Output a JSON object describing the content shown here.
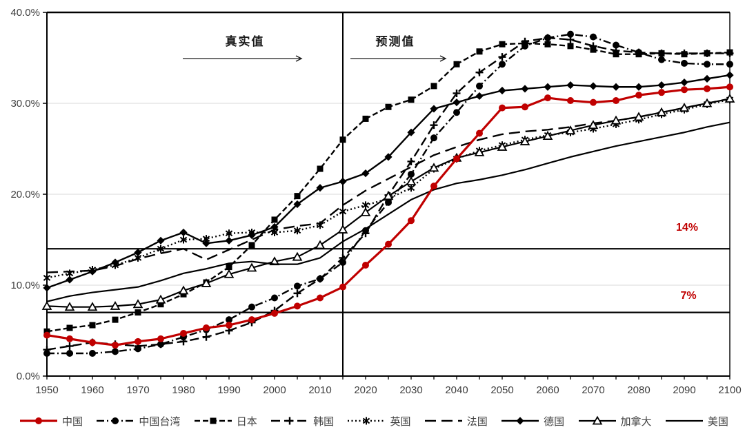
{
  "chart_data": {
    "type": "line",
    "title": "",
    "xlabel": "",
    "ylabel": "",
    "xlim": [
      1950,
      2100
    ],
    "ylim": [
      0,
      40
    ],
    "grid": "horizontal",
    "gridline_values": [
      10,
      20,
      30
    ],
    "y_ticks": [
      {
        "value": 0,
        "label": "0.0%"
      },
      {
        "value": 10,
        "label": "10.0%"
      },
      {
        "value": 20,
        "label": "20.0%"
      },
      {
        "value": 30,
        "label": "30.0%"
      },
      {
        "value": 40,
        "label": "40.0%"
      }
    ],
    "x_ticks": [
      1950,
      1960,
      1970,
      1980,
      1990,
      2000,
      2010,
      2020,
      2030,
      2040,
      2050,
      2060,
      2070,
      2080,
      2090,
      2100
    ],
    "divider_year": 2015,
    "annotations": {
      "actual_label": "真实值",
      "forecast_label": "预测值"
    },
    "reference_lines": [
      {
        "y": 14,
        "label": "14%",
        "color": "#000000",
        "label_color": "#c00000"
      },
      {
        "y": 7,
        "label": "7%",
        "color": "#000000",
        "label_color": "#c00000"
      }
    ],
    "accent_color": "#c00000",
    "legend_position": "bottom",
    "x": [
      1950,
      1955,
      1960,
      1965,
      1970,
      1975,
      1980,
      1985,
      1990,
      1995,
      2000,
      2005,
      2010,
      2015,
      2020,
      2025,
      2030,
      2035,
      2040,
      2045,
      2050,
      2055,
      2060,
      2065,
      2070,
      2075,
      2080,
      2085,
      2090,
      2095,
      2100
    ],
    "series": [
      {
        "key": "china",
        "label": "中国",
        "color": "#c00000",
        "dash": null,
        "marker": "circle",
        "line_width": 3.2,
        "values": [
          4.5,
          4.1,
          3.7,
          3.4,
          3.8,
          4.1,
          4.7,
          5.3,
          5.6,
          6.2,
          6.9,
          7.7,
          8.6,
          9.8,
          12.2,
          14.5,
          17.1,
          20.9,
          23.9,
          26.7,
          29.5,
          29.6,
          30.6,
          30.3,
          30.1,
          30.3,
          30.9,
          31.2,
          31.5,
          31.6,
          31.8
        ]
      },
      {
        "key": "taiwan",
        "label": "中国台湾",
        "color": "#000000",
        "dash": "11 4 2 4",
        "marker": "circle",
        "line_width": 2.4,
        "values": [
          2.5,
          2.5,
          2.5,
          2.7,
          3.0,
          3.5,
          4.3,
          5.1,
          6.2,
          7.6,
          8.6,
          9.9,
          10.7,
          12.5,
          16.0,
          19.1,
          22.2,
          26.2,
          29.0,
          31.9,
          34.3,
          36.3,
          37.2,
          37.6,
          37.3,
          36.4,
          35.6,
          34.8,
          34.4,
          34.3,
          34.3
        ]
      },
      {
        "key": "japan",
        "label": "日本",
        "color": "#000000",
        "dash": "8 4",
        "marker": "square",
        "line_width": 2.4,
        "values": [
          4.9,
          5.3,
          5.6,
          6.2,
          7.0,
          7.9,
          9.0,
          10.3,
          12.0,
          14.4,
          17.2,
          19.8,
          22.8,
          26.0,
          28.3,
          29.6,
          30.4,
          31.9,
          34.3,
          35.7,
          36.5,
          36.6,
          36.5,
          36.3,
          35.9,
          35.4,
          35.4,
          35.5,
          35.4,
          35.5,
          35.6
        ]
      },
      {
        "key": "korea",
        "label": "韩国",
        "color": "#000000",
        "dash": "13 6",
        "marker": "plus",
        "line_width": 2.4,
        "values": [
          2.9,
          3.3,
          3.7,
          3.5,
          3.3,
          3.5,
          3.8,
          4.3,
          5.0,
          5.9,
          7.2,
          9.1,
          10.7,
          13.0,
          15.7,
          19.9,
          23.6,
          27.6,
          31.1,
          33.4,
          35.1,
          36.8,
          37.2,
          37.0,
          36.3,
          35.8,
          35.6,
          35.5,
          35.5,
          35.5,
          35.5
        ]
      },
      {
        "key": "uk",
        "label": "英国",
        "color": "#000000",
        "dash": "2 3.5",
        "marker": "asterisk",
        "line_width": 2.4,
        "values": [
          10.8,
          11.3,
          11.7,
          12.2,
          13.0,
          14.0,
          15.0,
          15.1,
          15.7,
          15.8,
          15.8,
          16.0,
          16.6,
          18.1,
          18.8,
          19.5,
          20.7,
          22.8,
          23.9,
          24.8,
          25.4,
          26.0,
          26.5,
          26.8,
          27.2,
          27.7,
          28.2,
          28.8,
          29.3,
          29.9,
          30.4
        ]
      },
      {
        "key": "france",
        "label": "法国",
        "color": "#000000",
        "dash": "16 8",
        "marker": null,
        "line_width": 2.4,
        "values": [
          11.4,
          11.5,
          11.6,
          12.1,
          12.9,
          13.5,
          14.0,
          12.8,
          13.9,
          15.0,
          16.1,
          16.5,
          16.8,
          18.8,
          20.4,
          21.7,
          23.0,
          24.3,
          25.2,
          26.0,
          26.6,
          26.9,
          27.1,
          27.4,
          27.8,
          28.1,
          28.5,
          29.0,
          29.5,
          30.0,
          30.5
        ]
      },
      {
        "key": "germany",
        "label": "德国",
        "color": "#000000",
        "dash": null,
        "marker": "diamond",
        "line_width": 2.4,
        "values": [
          9.7,
          10.6,
          11.5,
          12.5,
          13.6,
          14.9,
          15.8,
          14.6,
          14.9,
          15.5,
          16.4,
          18.9,
          20.7,
          21.4,
          22.3,
          24.1,
          26.8,
          29.4,
          30.1,
          30.8,
          31.4,
          31.6,
          31.8,
          32.0,
          31.9,
          31.8,
          31.8,
          32.0,
          32.3,
          32.7,
          33.1
        ]
      },
      {
        "key": "canada",
        "label": "加拿大",
        "color": "#000000",
        "dash": null,
        "marker": "triangle-open",
        "line_width": 2.2,
        "values": [
          7.7,
          7.6,
          7.6,
          7.7,
          7.9,
          8.4,
          9.4,
          10.2,
          11.2,
          11.9,
          12.6,
          13.1,
          14.4,
          16.1,
          18.0,
          19.8,
          21.4,
          22.9,
          24.0,
          24.6,
          25.2,
          25.8,
          26.4,
          27.0,
          27.6,
          28.1,
          28.5,
          29.0,
          29.5,
          30.0,
          30.5
        ]
      },
      {
        "key": "usa",
        "label": "美国",
        "color": "#000000",
        "dash": null,
        "marker": null,
        "line_width": 2.2,
        "values": [
          8.2,
          8.8,
          9.2,
          9.5,
          9.8,
          10.5,
          11.3,
          11.8,
          12.4,
          12.6,
          12.3,
          12.3,
          13.0,
          14.8,
          16.2,
          17.8,
          19.4,
          20.5,
          21.2,
          21.6,
          22.1,
          22.7,
          23.4,
          24.1,
          24.7,
          25.3,
          25.8,
          26.3,
          26.8,
          27.4,
          27.9
        ]
      }
    ]
  }
}
